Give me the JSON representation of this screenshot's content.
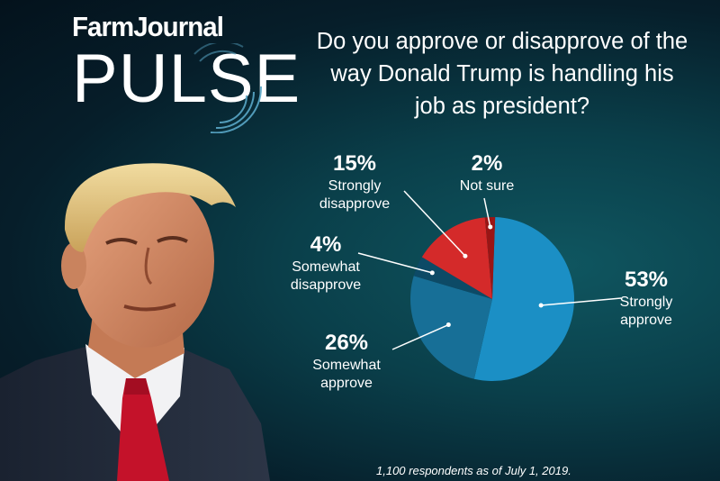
{
  "brand": {
    "top": "FarmJournal",
    "bottom": "PULSE"
  },
  "question": "Do you approve or disapprove of the way Donald Trump is handling his job as president?",
  "footnote": "1,100 respondents as of July 1, 2019.",
  "colors": {
    "strongly_approve": "#1b8fc5",
    "somewhat_approve": "#176f97",
    "somewhat_disapprove": "#0d4a66",
    "strongly_disapprove": "#d42a2a",
    "not_sure": "#9a1515"
  },
  "chart_data": {
    "type": "pie",
    "unit": "%",
    "slices": [
      {
        "label": "Strongly approve",
        "value": 53,
        "pct_text": "53%",
        "label_lines": [
          "Strongly",
          "approve"
        ],
        "color": "#1b8fc5"
      },
      {
        "label": "Somewhat approve",
        "value": 26,
        "pct_text": "26%",
        "label_lines": [
          "Somewhat",
          "approve"
        ],
        "color": "#176f97"
      },
      {
        "label": "Somewhat disapprove",
        "value": 4,
        "pct_text": "4%",
        "label_lines": [
          "Somewhat",
          "disapprove"
        ],
        "color": "#0d4a66"
      },
      {
        "label": "Strongly disapprove",
        "value": 15,
        "pct_text": "15%",
        "label_lines": [
          "Strongly",
          "disapprove"
        ],
        "color": "#d42a2a"
      },
      {
        "label": "Not sure",
        "value": 2,
        "pct_text": "2%",
        "label_lines": [
          "Not sure"
        ],
        "color": "#9a1515"
      }
    ]
  }
}
